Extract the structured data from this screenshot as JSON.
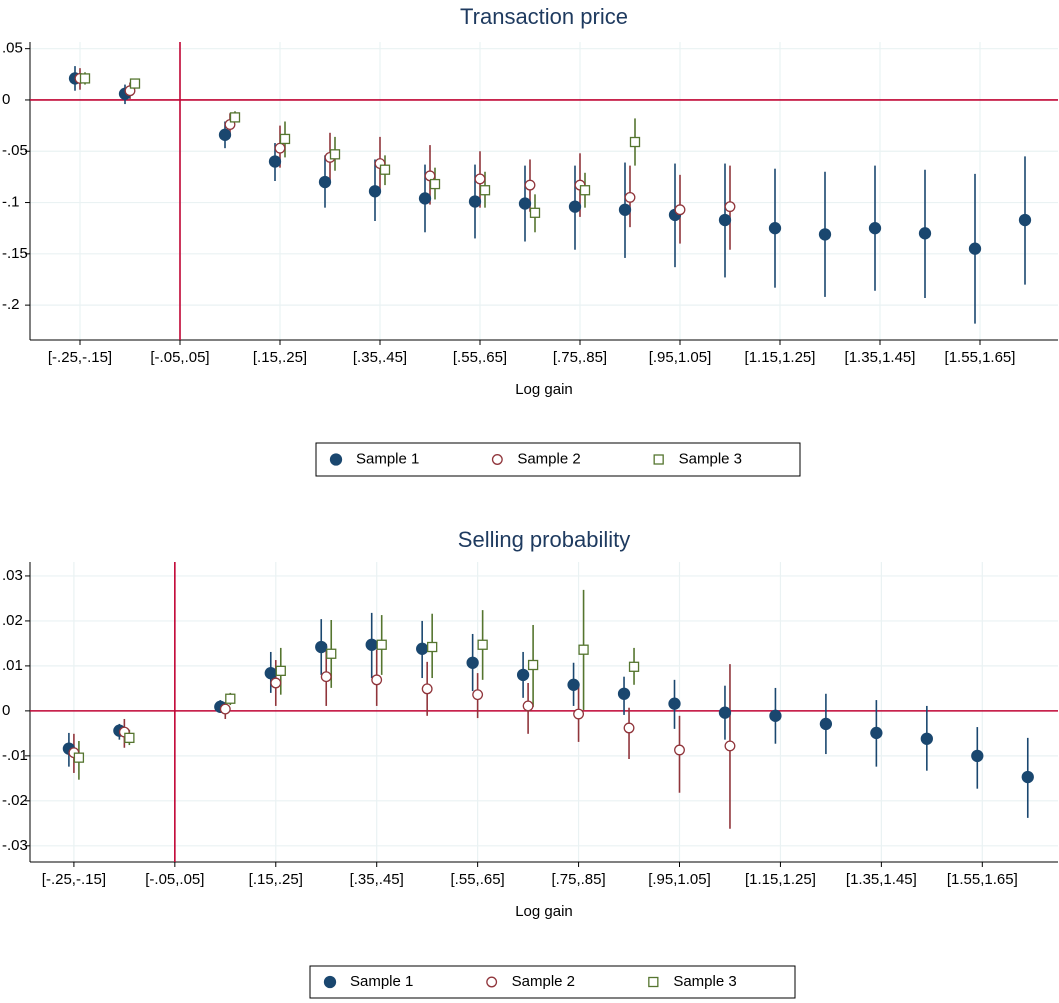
{
  "chart_data": [
    {
      "type": "scatter",
      "title": "Transaction price",
      "x_label": "Log gain",
      "xlim": [
        -0.3,
        1.756
      ],
      "ylim": [
        -0.234,
        0.0565
      ],
      "xticks": [
        {
          "value": -0.2,
          "label": "[-.25,-.15]"
        },
        {
          "value": 0,
          "label": "[-.05,.05]"
        },
        {
          "value": 0.2,
          "label": "[.15,.25]"
        },
        {
          "value": 0.4,
          "label": "[.35,.45]"
        },
        {
          "value": 0.6,
          "label": "[.55,.65]"
        },
        {
          "value": 0.8,
          "label": "[.75,.85]"
        },
        {
          "value": 1.0,
          "label": "[.95,1.05]"
        },
        {
          "value": 1.2,
          "label": "[1.15,1.25]"
        },
        {
          "value": 1.4,
          "label": "[1.35,1.45]"
        },
        {
          "value": 1.6,
          "label": "[1.55,1.65]"
        }
      ],
      "yticks": [
        {
          "value": 0.05,
          "label": ".05"
        },
        0,
        {
          "value": -0.05,
          "label": "-.05"
        },
        {
          "value": -0.1,
          "label": "-.1"
        },
        {
          "value": -0.15,
          "label": "-.15"
        },
        {
          "value": -0.2,
          "label": "-.2"
        }
      ],
      "grid": true,
      "reference_lines": {
        "x": 0,
        "y": 0,
        "color": "#c10534"
      },
      "legend": "bottom",
      "series": [
        {
          "name": "Sample 1",
          "color": "#1a476f",
          "marker": "circle-filled",
          "x": [
            -0.2,
            -0.1,
            0.1,
            0.2,
            0.3,
            0.4,
            0.5,
            0.6,
            0.7,
            0.8,
            0.9,
            1.0,
            1.1,
            1.2,
            1.3,
            1.4,
            1.5,
            1.6,
            1.7
          ],
          "values": [
            0.021,
            0.006,
            -0.034,
            -0.06,
            -0.08,
            -0.089,
            -0.096,
            -0.099,
            -0.101,
            -0.104,
            -0.107,
            -0.112,
            -0.117,
            -0.125,
            -0.131,
            -0.125,
            -0.13,
            -0.145,
            -0.117
          ],
          "low": [
            0.009,
            -0.004,
            -0.047,
            -0.079,
            -0.105,
            -0.118,
            -0.129,
            -0.135,
            -0.138,
            -0.146,
            -0.154,
            -0.163,
            -0.173,
            -0.183,
            -0.192,
            -0.186,
            -0.193,
            -0.218,
            -0.18
          ],
          "high": [
            0.033,
            0.015,
            -0.021,
            -0.042,
            -0.054,
            -0.058,
            -0.063,
            -0.063,
            -0.064,
            -0.064,
            -0.061,
            -0.062,
            -0.062,
            -0.067,
            -0.07,
            -0.064,
            -0.068,
            -0.072,
            -0.055
          ]
        },
        {
          "name": "Sample 2",
          "color": "#90353b",
          "marker": "circle-hollow",
          "x": [
            -0.2,
            -0.1,
            0.1,
            0.2,
            0.3,
            0.4,
            0.5,
            0.6,
            0.7,
            0.8,
            0.9,
            1.0,
            1.1
          ],
          "values": [
            0.021,
            0.009,
            -0.024,
            -0.047,
            -0.056,
            -0.062,
            -0.074,
            -0.077,
            -0.083,
            -0.083,
            -0.095,
            -0.107,
            -0.104
          ],
          "low": [
            0.01,
            0.001,
            -0.036,
            -0.066,
            -0.081,
            -0.089,
            -0.102,
            -0.105,
            -0.109,
            -0.114,
            -0.124,
            -0.14,
            -0.146
          ],
          "high": [
            0.031,
            0.017,
            -0.013,
            -0.025,
            -0.032,
            -0.036,
            -0.044,
            -0.05,
            -0.058,
            -0.052,
            -0.064,
            -0.073,
            -0.064
          ]
        },
        {
          "name": "Sample 3",
          "color": "#55752f",
          "marker": "square-hollow",
          "x": [
            -0.2,
            -0.1,
            0.1,
            0.2,
            0.3,
            0.4,
            0.5,
            0.6,
            0.7,
            0.8,
            0.9
          ],
          "values": [
            0.021,
            0.016,
            -0.017,
            -0.038,
            -0.053,
            -0.068,
            -0.082,
            -0.088,
            -0.11,
            -0.088,
            -0.041
          ],
          "low": [
            0.015,
            0.011,
            -0.022,
            -0.056,
            -0.069,
            -0.083,
            -0.097,
            -0.105,
            -0.129,
            -0.105,
            -0.064
          ],
          "high": [
            0.027,
            0.02,
            -0.011,
            -0.021,
            -0.036,
            -0.054,
            -0.066,
            -0.07,
            -0.092,
            -0.071,
            -0.018
          ]
        }
      ]
    },
    {
      "type": "scatter",
      "title": "Selling probability",
      "x_label": "Log gain",
      "xlim": [
        -0.287,
        1.75
      ],
      "ylim": [
        -0.0336,
        0.0331
      ],
      "xticks": [
        {
          "value": -0.2,
          "label": "[-.25,-.15]"
        },
        {
          "value": 0,
          "label": "[-.05,.05]"
        },
        {
          "value": 0.2,
          "label": "[.15,.25]"
        },
        {
          "value": 0.4,
          "label": "[.35,.45]"
        },
        {
          "value": 0.6,
          "label": "[.55,.65]"
        },
        {
          "value": 0.8,
          "label": "[.75,.85]"
        },
        {
          "value": 1.0,
          "label": "[.95,1.05]"
        },
        {
          "value": 1.2,
          "label": "[1.15,1.25]"
        },
        {
          "value": 1.4,
          "label": "[1.35,1.45]"
        },
        {
          "value": 1.6,
          "label": "[1.55,1.65]"
        }
      ],
      "yticks": [
        {
          "value": 0.03,
          "label": ".03"
        },
        {
          "value": 0.02,
          "label": ".02"
        },
        {
          "value": 0.01,
          "label": ".01"
        },
        0,
        {
          "value": -0.01,
          "label": "-.01"
        },
        {
          "value": -0.02,
          "label": "-.02"
        },
        {
          "value": -0.03,
          "label": "-.03"
        }
      ],
      "grid": true,
      "reference_lines": {
        "x": 0,
        "y": 0,
        "color": "#c10534"
      },
      "legend": "bottom",
      "series": [
        {
          "name": "Sample 1",
          "color": "#1a476f",
          "marker": "circle-filled",
          "x": [
            -0.2,
            -0.1,
            0.1,
            0.2,
            0.3,
            0.4,
            0.5,
            0.6,
            0.7,
            0.8,
            0.9,
            1.0,
            1.1,
            1.2,
            1.3,
            1.4,
            1.5,
            1.6,
            1.7
          ],
          "values": [
            -0.0084,
            -0.0044,
            0.0009,
            0.0084,
            0.0142,
            0.0147,
            0.0138,
            0.0107,
            0.008,
            0.0058,
            0.0038,
            0.0016,
            -0.0004,
            -0.0011,
            -0.0029,
            -0.0049,
            -0.0062,
            -0.01,
            -0.0147
          ],
          "low": [
            -0.0124,
            -0.0064,
            -0.0004,
            0.004,
            0.008,
            0.0073,
            0.0073,
            0.0044,
            0.0029,
            0.0011,
            -0.0009,
            -0.004,
            -0.0064,
            -0.0073,
            -0.0096,
            -0.0124,
            -0.0133,
            -0.0173,
            -0.0238
          ],
          "high": [
            -0.0049,
            -0.0029,
            0.0024,
            0.0131,
            0.0204,
            0.0218,
            0.02,
            0.0171,
            0.0131,
            0.0107,
            0.0076,
            0.0069,
            0.0056,
            0.0051,
            0.0038,
            0.0024,
            0.0011,
            -0.0036,
            -0.006
          ]
        },
        {
          "name": "Sample 2",
          "color": "#90353b",
          "marker": "circle-hollow",
          "x": [
            -0.2,
            -0.1,
            0.1,
            0.2,
            0.3,
            0.4,
            0.5,
            0.6,
            0.7,
            0.8,
            0.9,
            1.0,
            1.1
          ],
          "values": [
            -0.0093,
            -0.0047,
            0.0004,
            0.0062,
            0.0076,
            0.0069,
            0.0049,
            0.0036,
            0.0011,
            -0.0007,
            -0.0038,
            -0.0087,
            -0.0078
          ],
          "low": [
            -0.0138,
            -0.0082,
            -0.0018,
            0.0011,
            0.0011,
            0.0011,
            -0.0011,
            -0.0016,
            -0.0051,
            -0.0069,
            -0.0107,
            -0.0182,
            -0.0262
          ],
          "high": [
            -0.0051,
            -0.0018,
            0.002,
            0.0113,
            0.0149,
            0.0136,
            0.0109,
            0.0084,
            0.0062,
            0.0058,
            0.0007,
            -0.0011,
            0.0104
          ]
        },
        {
          "name": "Sample 3",
          "color": "#55752f",
          "marker": "square-hollow",
          "x": [
            -0.2,
            -0.1,
            0.1,
            0.2,
            0.3,
            0.4,
            0.5,
            0.6,
            0.7,
            0.8,
            0.9
          ],
          "values": [
            -0.0104,
            -0.006,
            0.0027,
            0.0089,
            0.0127,
            0.0147,
            0.0142,
            0.0147,
            0.0102,
            0.0136,
            0.0098
          ],
          "low": [
            -0.0153,
            -0.0076,
            0.0013,
            0.0036,
            0.0051,
            0.008,
            0.0073,
            0.0069,
            0.0009,
            0.0002,
            0.0058
          ],
          "high": [
            -0.0067,
            -0.0042,
            0.004,
            0.014,
            0.0202,
            0.0213,
            0.0216,
            0.0224,
            0.0191,
            0.0269,
            0.014
          ]
        }
      ]
    }
  ]
}
